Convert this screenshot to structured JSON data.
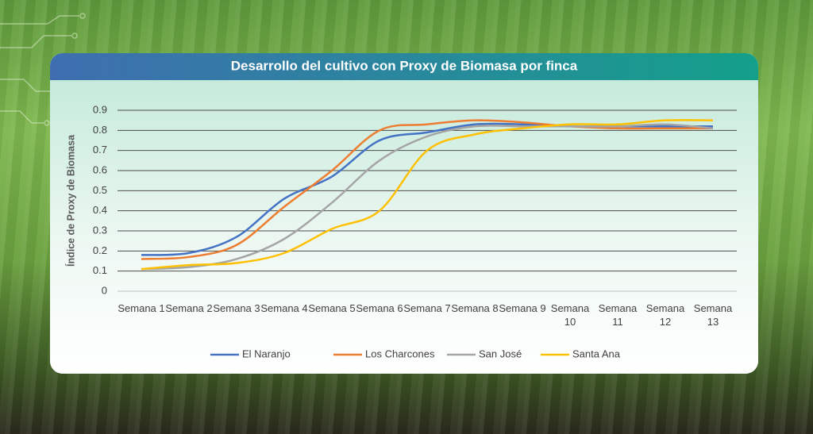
{
  "chart_data": {
    "type": "line",
    "title": "Desarrollo del cultivo con Proxy de Biomasa por finca",
    "y_label": "Índice de Proxy de Biomasa",
    "categories": [
      "Semana 1",
      "Semana 2",
      "Semana 3",
      "Semana 4",
      "Semana 5",
      "Semana 6",
      "Semana 7",
      "Semana 8",
      "Semana 9",
      "Semana 10",
      "Semana 11",
      "Semana 12",
      "Semana 13"
    ],
    "series": [
      {
        "name": "El Naranjo",
        "color": "#4472c4",
        "values": [
          0.18,
          0.19,
          0.27,
          0.46,
          0.57,
          0.75,
          0.79,
          0.83,
          0.83,
          0.82,
          0.82,
          0.82,
          0.82
        ]
      },
      {
        "name": "Los Charcones",
        "color": "#ed7d31",
        "values": [
          0.16,
          0.17,
          0.23,
          0.42,
          0.6,
          0.8,
          0.83,
          0.85,
          0.84,
          0.82,
          0.81,
          0.81,
          0.81
        ]
      },
      {
        "name": "San José",
        "color": "#a5a5a5",
        "values": [
          0.11,
          0.12,
          0.16,
          0.26,
          0.44,
          0.65,
          0.77,
          0.82,
          0.82,
          0.82,
          0.82,
          0.83,
          0.81
        ]
      },
      {
        "name": "Santa Ana",
        "color": "#ffc000",
        "values": [
          0.11,
          0.13,
          0.14,
          0.19,
          0.31,
          0.4,
          0.7,
          0.78,
          0.81,
          0.83,
          0.83,
          0.85,
          0.85
        ]
      }
    ],
    "ylim": [
      0,
      0.9
    ],
    "yticks": [
      0,
      0.1,
      0.2,
      0.3,
      0.4,
      0.5,
      0.6,
      0.7,
      0.8,
      0.9
    ],
    "grid": true,
    "legend": "bottom"
  }
}
